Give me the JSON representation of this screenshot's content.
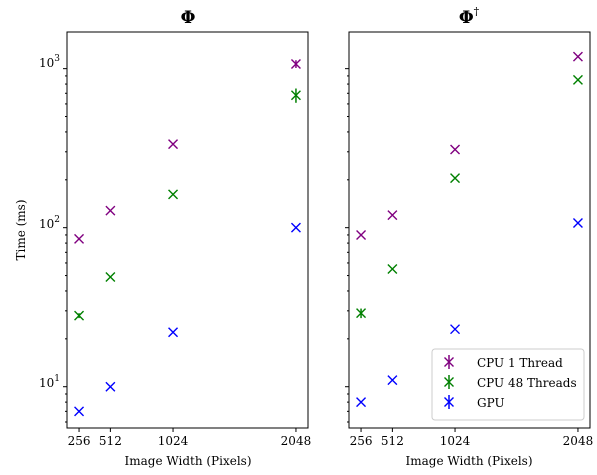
{
  "chart_data": [
    {
      "type": "scatter",
      "title": "Φ",
      "xlabel": "Image Width (Pixels)",
      "ylabel": "Time (ms)",
      "yscale": "log",
      "ylim": [
        5.5,
        1700
      ],
      "x": [
        256,
        512,
        1024,
        2048
      ],
      "xticks": [
        "256",
        "512",
        "1024",
        "2048"
      ],
      "yticks": [
        "10^1",
        "10^2",
        "10^3"
      ],
      "marker": "x",
      "series": [
        {
          "name": "CPU 1 Thread",
          "color": "#800080",
          "values": [
            85,
            128,
            335,
            1070
          ],
          "errors": [
            0,
            0,
            0,
            60
          ]
        },
        {
          "name": "CPU 48 Threads",
          "color": "#008000",
          "values": [
            28,
            49,
            162,
            680
          ],
          "errors": [
            1,
            0,
            0,
            70
          ]
        },
        {
          "name": "GPU",
          "color": "#0000ff",
          "values": [
            7,
            10,
            22,
            100
          ],
          "errors": [
            0,
            0,
            0,
            0
          ]
        }
      ]
    },
    {
      "type": "scatter",
      "title": "Φ",
      "title_superscript": "†",
      "xlabel": "Image Width (Pixels)",
      "ylabel": "",
      "yscale": "log",
      "ylim": [
        5.5,
        1700
      ],
      "x": [
        256,
        512,
        1024,
        2048
      ],
      "xticks": [
        "256",
        "512",
        "1024",
        "2048"
      ],
      "marker": "x",
      "legend": "lower-right",
      "series": [
        {
          "name": "CPU 1 Thread",
          "color": "#800080",
          "values": [
            90,
            120,
            310,
            1190
          ],
          "errors": [
            0,
            0,
            0,
            0
          ]
        },
        {
          "name": "CPU 48 Threads",
          "color": "#008000",
          "values": [
            29,
            55,
            205,
            850
          ],
          "errors": [
            2,
            0,
            0,
            0
          ]
        },
        {
          "name": "GPU",
          "color": "#0000ff",
          "values": [
            8,
            11,
            23,
            107
          ],
          "errors": [
            0,
            0,
            0,
            0
          ]
        }
      ]
    }
  ]
}
